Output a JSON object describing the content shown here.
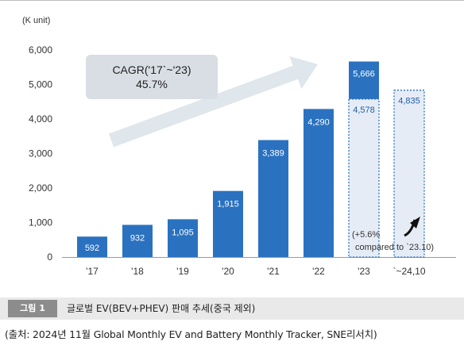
{
  "chart_data": {
    "type": "bar",
    "unit_label": "(K unit)",
    "categories": [
      "'17",
      "'18",
      "'19",
      "'20",
      "'21",
      "'22",
      "'23",
      "`~24,10"
    ],
    "values": [
      592,
      932,
      1095,
      1915,
      3389,
      4290,
      5666,
      4835
    ],
    "value_labels": [
      "592",
      "932",
      "1,095",
      "1,915",
      "3,389",
      "4,290",
      "5,666",
      "4,835"
    ],
    "segment_2023": {
      "value": 4578,
      "label": "4,578"
    },
    "y_ticks": [
      "6,000",
      "5,000",
      "4,000",
      "3,000",
      "2,000",
      "1,000",
      "0"
    ],
    "ylim": [
      0,
      6000
    ],
    "grid": false,
    "legend": "none",
    "cagr": {
      "line1": "CAGR('17`~'23)",
      "line2": "45.7%"
    },
    "annotation": {
      "line1": "(+5.6%",
      "line2": "compared to `23.10)"
    },
    "colors": {
      "bar": "#2a72c0",
      "bar_top": "#3d8ad6",
      "bar_dashed_fill": "#e6ecf6",
      "dashed_border": "#2a72c0",
      "label_text": "#ffffff",
      "value_text_dashed": "#1f5ea8",
      "arrow": "#dfe6ec",
      "cagr_box": "#d8dee3"
    }
  },
  "caption": {
    "tag": "그림 1",
    "text": "글로벌 EV(BEV+PHEV) 판매 추세(중국 제외)"
  },
  "source": "(출처: 2024년 11월 Global Monthly EV and Battery Monthly Tracker, SNE리서치)"
}
